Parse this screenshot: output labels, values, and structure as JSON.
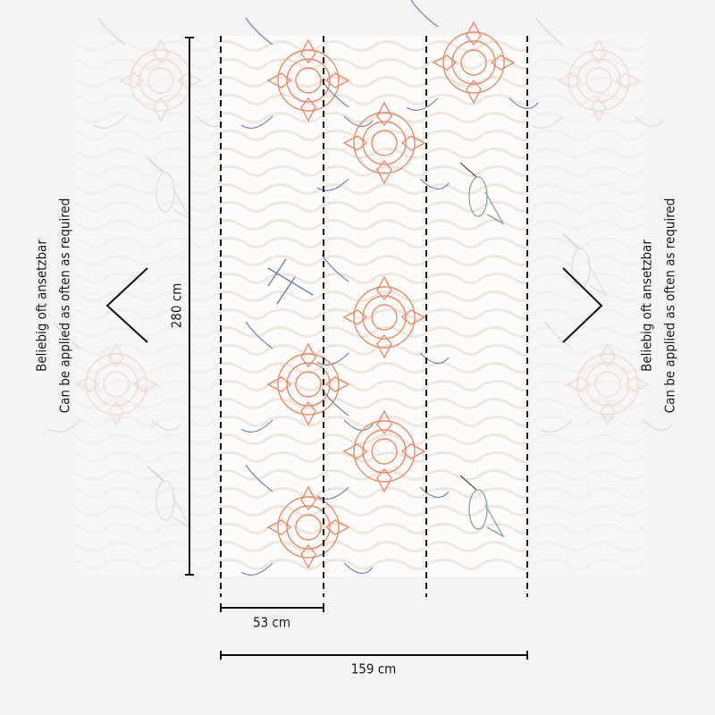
{
  "dimensions": {
    "height": "280 cm",
    "panel_width": "53 cm",
    "total_width": "159 cm"
  },
  "side_labels": {
    "left": [
      "Beliebig oft ansetzbar",
      "Can be applied as often as required"
    ],
    "right": [
      "Beliebig oft ansetzbar",
      "Can be applied as often as required"
    ]
  }
}
